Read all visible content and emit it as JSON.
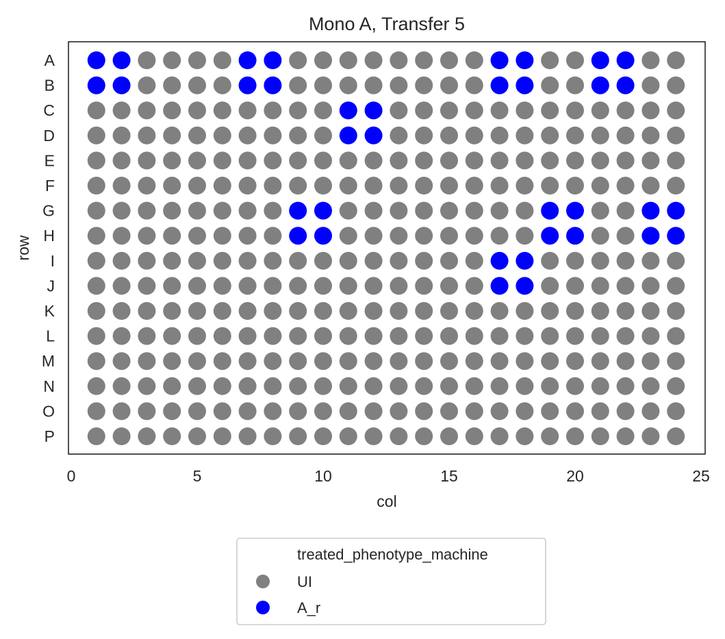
{
  "chart_data": {
    "type": "scatter",
    "title": "Mono A, Transfer 5",
    "xlabel": "col",
    "ylabel": "row",
    "xlim": [
      0,
      25
    ],
    "xticks": [
      0,
      5,
      10,
      15,
      20,
      25
    ],
    "rows": [
      "A",
      "B",
      "C",
      "D",
      "E",
      "F",
      "G",
      "H",
      "I",
      "J",
      "K",
      "L",
      "M",
      "N",
      "O",
      "P"
    ],
    "cols": [
      1,
      2,
      3,
      4,
      5,
      6,
      7,
      8,
      9,
      10,
      11,
      12,
      13,
      14,
      15,
      16,
      17,
      18,
      19,
      20,
      21,
      22,
      23,
      24
    ],
    "grid": false,
    "legend": {
      "title": "treated_phenotype_machine",
      "placement": "below",
      "entries": [
        {
          "label": "UI",
          "color": "#808080"
        },
        {
          "label": "A_r",
          "color": "#0000ff"
        }
      ]
    },
    "series": [
      {
        "name": "UI",
        "color": "#808080",
        "description": "all wells not listed in A_r"
      },
      {
        "name": "A_r",
        "color": "#0000ff",
        "points": [
          {
            "row": "A",
            "col": 1
          },
          {
            "row": "A",
            "col": 2
          },
          {
            "row": "A",
            "col": 7
          },
          {
            "row": "A",
            "col": 8
          },
          {
            "row": "A",
            "col": 17
          },
          {
            "row": "A",
            "col": 18
          },
          {
            "row": "A",
            "col": 21
          },
          {
            "row": "A",
            "col": 22
          },
          {
            "row": "B",
            "col": 1
          },
          {
            "row": "B",
            "col": 2
          },
          {
            "row": "B",
            "col": 7
          },
          {
            "row": "B",
            "col": 8
          },
          {
            "row": "B",
            "col": 17
          },
          {
            "row": "B",
            "col": 18
          },
          {
            "row": "B",
            "col": 21
          },
          {
            "row": "B",
            "col": 22
          },
          {
            "row": "C",
            "col": 11
          },
          {
            "row": "C",
            "col": 12
          },
          {
            "row": "D",
            "col": 11
          },
          {
            "row": "D",
            "col": 12
          },
          {
            "row": "G",
            "col": 9
          },
          {
            "row": "G",
            "col": 10
          },
          {
            "row": "G",
            "col": 19
          },
          {
            "row": "G",
            "col": 20
          },
          {
            "row": "G",
            "col": 23
          },
          {
            "row": "G",
            "col": 24
          },
          {
            "row": "H",
            "col": 9
          },
          {
            "row": "H",
            "col": 10
          },
          {
            "row": "H",
            "col": 19
          },
          {
            "row": "H",
            "col": 20
          },
          {
            "row": "H",
            "col": 23
          },
          {
            "row": "H",
            "col": 24
          },
          {
            "row": "I",
            "col": 17
          },
          {
            "row": "I",
            "col": 18
          },
          {
            "row": "J",
            "col": 17
          },
          {
            "row": "J",
            "col": 18
          }
        ]
      }
    ]
  }
}
